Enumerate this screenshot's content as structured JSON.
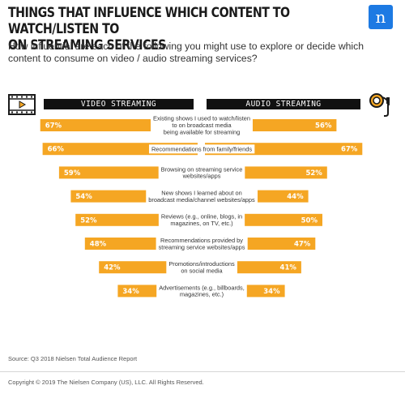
{
  "title": "THINGS THAT INFLUENCE WHICH CONTENT TO WATCH/LISTEN TO\nON STREAMING SERVICES",
  "subtitle": "How influential are each of the following you might use to explore or decide which content to consume on video / audio streaming services?",
  "logo_letter": "n",
  "icons": {
    "video": "film-strip-icon",
    "audio": "headphones-icon"
  },
  "colors": {
    "bar": "#f5a623",
    "header": "#111111",
    "logo": "#1d7ae3"
  },
  "source": "Source: Q3 2018 Nielsen Total Audience Report",
  "copyright": "Copyright © 2019 The Nielsen Company (US), LLC. All Rights Reserved.",
  "chart_data": {
    "type": "bar",
    "orientation": "horizontal-butterfly",
    "categories": [
      "Existing shows I used to watch/listen\nto on broadcast media\nbeing available for streaming",
      "Recommendations from family/friends",
      "Browsing on streaming service\nwebsites/apps",
      "New shows I learned about on\nbroadcast media/channel websites/apps",
      "Reviews (e.g., online, blogs, in\nmagazines, on TV, etc.)",
      "Recommendations provided by\nstreaming service websites/apps",
      "Promotions/introductions\non social media",
      "Advertisements (e.g., billboards,\nmagazines, etc.)"
    ],
    "series": [
      {
        "name": "VIDEO STREAMING",
        "values": [
          67,
          66,
          59,
          54,
          52,
          48,
          42,
          34
        ],
        "labels": [
          "67%",
          "66%",
          "59%",
          "54%",
          "52%",
          "48%",
          "42%",
          "34%"
        ]
      },
      {
        "name": "AUDIO STREAMING",
        "values": [
          56,
          67,
          52,
          44,
          50,
          47,
          41,
          34
        ],
        "labels": [
          "56%",
          "67%",
          "52%",
          "44%",
          "50%",
          "47%",
          "41%",
          "34%"
        ]
      }
    ],
    "xlim": [
      0,
      100
    ],
    "grid": false,
    "legend": "top"
  }
}
